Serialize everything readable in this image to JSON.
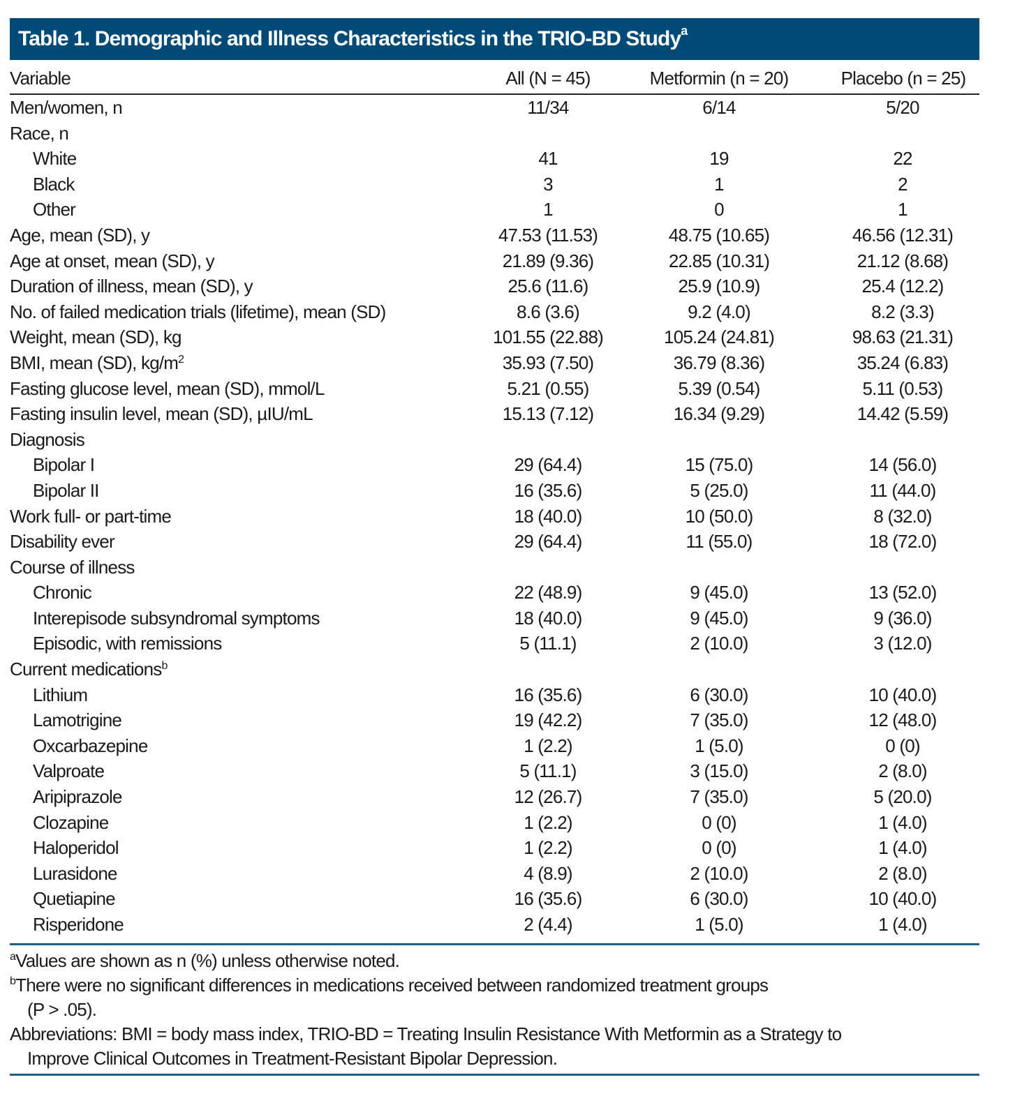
{
  "title": {
    "text": "Table 1. Demographic and Illness Characteristics in the TRIO-BD Study",
    "sup": "a"
  },
  "colors": {
    "title_band": "#004a78",
    "rule": "#1d5f86"
  },
  "columns": [
    "Variable",
    "All (N = 45)",
    "Metformin (n = 20)",
    "Placebo (n = 25)"
  ],
  "rows": [
    {
      "label": "Men/women, n",
      "indent": false,
      "values": [
        "11/34",
        "6/14",
        "5/20"
      ]
    },
    {
      "label": "Race, n",
      "indent": false,
      "values": [
        "",
        "",
        ""
      ]
    },
    {
      "label": "White",
      "indent": true,
      "values": [
        "41",
        "19",
        "22"
      ]
    },
    {
      "label": "Black",
      "indent": true,
      "values": [
        "3",
        "1",
        "2"
      ]
    },
    {
      "label": "Other",
      "indent": true,
      "values": [
        "1",
        "0",
        "1"
      ]
    },
    {
      "label": "Age, mean (SD), y",
      "indent": false,
      "values": [
        "47.53 (11.53)",
        "48.75 (10.65)",
        "46.56 (12.31)"
      ]
    },
    {
      "label": "Age at onset, mean (SD), y",
      "indent": false,
      "values": [
        "21.89 (9.36)",
        "22.85 (10.31)",
        "21.12 (8.68)"
      ]
    },
    {
      "label": "Duration of illness, mean (SD), y",
      "indent": false,
      "values": [
        "25.6 (11.6)",
        "25.9 (10.9)",
        "25.4 (12.2)"
      ]
    },
    {
      "label": "No. of failed medication trials (lifetime), mean (SD)",
      "indent": false,
      "values": [
        "8.6 (3.6)",
        "9.2 (4.0)",
        "8.2 (3.3)"
      ]
    },
    {
      "label": "Weight, mean (SD), kg",
      "indent": false,
      "values": [
        "101.55 (22.88)",
        "105.24 (24.81)",
        "98.63 (21.31)"
      ]
    },
    {
      "label": "BMI, mean (SD), kg/m",
      "sup": "2",
      "indent": false,
      "values": [
        "35.93 (7.50)",
        "36.79 (8.36)",
        "35.24 (6.83)"
      ]
    },
    {
      "label": "Fasting glucose level, mean (SD), mmol/L",
      "indent": false,
      "values": [
        "5.21 (0.55)",
        "5.39 (0.54)",
        "5.11 (0.53)"
      ]
    },
    {
      "label": "Fasting insulin level, mean (SD), µIU/mL",
      "indent": false,
      "values": [
        "15.13 (7.12)",
        "16.34 (9.29)",
        "14.42 (5.59)"
      ]
    },
    {
      "label": "Diagnosis",
      "indent": false,
      "values": [
        "",
        "",
        ""
      ]
    },
    {
      "label": "Bipolar I",
      "indent": true,
      "values": [
        "29 (64.4)",
        "15 (75.0)",
        "14 (56.0)"
      ]
    },
    {
      "label": "Bipolar II",
      "indent": true,
      "values": [
        "16 (35.6)",
        "5 (25.0)",
        "11 (44.0)"
      ]
    },
    {
      "label": "Work full- or part-time",
      "indent": false,
      "values": [
        "18 (40.0)",
        "10 (50.0)",
        "8 (32.0)"
      ]
    },
    {
      "label": "Disability ever",
      "indent": false,
      "values": [
        "29 (64.4)",
        "11 (55.0)",
        "18 (72.0)"
      ]
    },
    {
      "label": "Course of illness",
      "indent": false,
      "values": [
        "",
        "",
        ""
      ]
    },
    {
      "label": "Chronic",
      "indent": true,
      "values": [
        "22 (48.9)",
        "9 (45.0)",
        "13 (52.0)"
      ]
    },
    {
      "label": "Interepisode subsyndromal symptoms",
      "indent": true,
      "values": [
        "18 (40.0)",
        "9 (45.0)",
        "9 (36.0)"
      ]
    },
    {
      "label": "Episodic, with remissions",
      "indent": true,
      "values": [
        "5 (11.1)",
        "2 (10.0)",
        "3 (12.0)"
      ]
    },
    {
      "label": "Current medications",
      "sup": "b",
      "indent": false,
      "values": [
        "",
        "",
        ""
      ]
    },
    {
      "label": "Lithium",
      "indent": true,
      "values": [
        "16 (35.6)",
        "6 (30.0)",
        "10 (40.0)"
      ]
    },
    {
      "label": "Lamotrigine",
      "indent": true,
      "values": [
        "19 (42.2)",
        "7 (35.0)",
        "12 (48.0)"
      ]
    },
    {
      "label": "Oxcarbazepine",
      "indent": true,
      "values": [
        "1 (2.2)",
        "1 (5.0)",
        "0 (0)"
      ]
    },
    {
      "label": "Valproate",
      "indent": true,
      "values": [
        "5 (11.1)",
        "3 (15.0)",
        "2 (8.0)"
      ]
    },
    {
      "label": "Aripiprazole",
      "indent": true,
      "values": [
        "12 (26.7)",
        "7 (35.0)",
        "5 (20.0)"
      ]
    },
    {
      "label": "Clozapine",
      "indent": true,
      "values": [
        "1 (2.2)",
        "0 (0)",
        "1 (4.0)"
      ]
    },
    {
      "label": "Haloperidol",
      "indent": true,
      "values": [
        "1 (2.2)",
        "0 (0)",
        "1 (4.0)"
      ]
    },
    {
      "label": "Lurasidone",
      "indent": true,
      "values": [
        "4 (8.9)",
        "2 (10.0)",
        "2 (8.0)"
      ]
    },
    {
      "label": "Quetiapine",
      "indent": true,
      "values": [
        "16 (35.6)",
        "6 (30.0)",
        "10 (40.0)"
      ]
    },
    {
      "label": "Risperidone",
      "indent": true,
      "values": [
        "2 (4.4)",
        "1 (5.0)",
        "1 (4.0)"
      ]
    }
  ],
  "footnotes": {
    "a_mark": "a",
    "a_text": "Values are shown as n (%) unless otherwise noted.",
    "b_mark": "b",
    "b_text": "There were no significant differences in medications received between randomized treatment groups",
    "b_cont": "(P > .05).",
    "abbrev_text": "Abbreviations: BMI = body mass index, TRIO-BD = Treating Insulin Resistance With Metformin as a Strategy to",
    "abbrev_cont": "Improve Clinical Outcomes in Treatment-Resistant Bipolar Depression."
  }
}
